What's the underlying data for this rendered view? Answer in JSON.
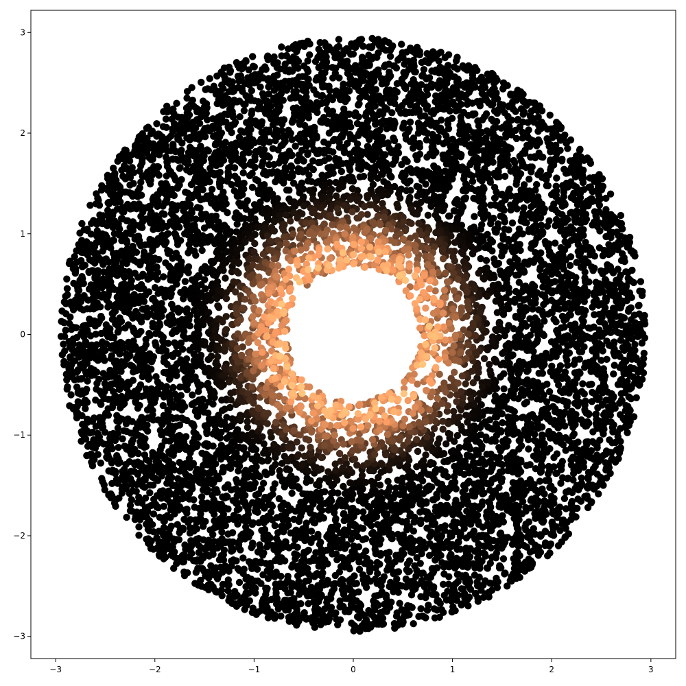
{
  "chart_data": {
    "type": "scatter",
    "title": "",
    "xlabel": "",
    "ylabel": "",
    "xlim": [
      -3.25,
      3.25
    ],
    "ylim": [
      -3.22,
      3.22
    ],
    "xticks": [
      -3,
      -2,
      -1,
      0,
      1,
      2,
      3
    ],
    "yticks": [
      -3,
      -2,
      -1,
      0,
      1,
      2,
      3
    ],
    "xtick_labels": [
      "−3",
      "−2",
      "−1",
      "0",
      "1",
      "2",
      "3"
    ],
    "ytick_labels": [
      "−3",
      "−2",
      "−1",
      "0",
      "1",
      "2",
      "3"
    ],
    "grid": false,
    "legend": "none",
    "colormap": "copper",
    "series": [
      {
        "points_description_only": true,
        "point_count": 10000,
        "r_inner": 0.67,
        "r_outer": 2.95,
        "color_peak_radius": 0.75,
        "color_low": "#000000",
        "color_high": "#ffc77f"
      }
    ]
  }
}
